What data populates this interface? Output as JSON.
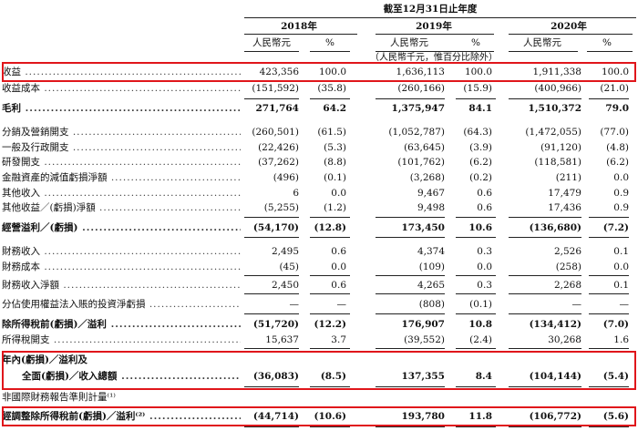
{
  "header": {
    "period_label": "截至12月31日止年度",
    "years": [
      "2018年",
      "2019年",
      "2020年"
    ],
    "col_headers": [
      "人民幣元",
      "%",
      "人民幣元",
      "%",
      "人民幣元",
      "%"
    ],
    "unit_note": "（人民幣千元，惟百分比除外）"
  },
  "rows": [
    {
      "label": "收益",
      "bold": false,
      "values": [
        "423,356",
        "100.0",
        "1,636,113",
        "100.0",
        "1,911,338",
        "100.0"
      ]
    },
    {
      "label": "收益成本",
      "bold": false,
      "values": [
        "(151,592)",
        "(35.8)",
        "(260,166)",
        "(15.9)",
        "(400,966)",
        "(21.0)"
      ]
    },
    {
      "label": "毛利",
      "bold": true,
      "values": [
        "271,764",
        "64.2",
        "1,375,947",
        "84.1",
        "1,510,372",
        "79.0"
      ]
    },
    {
      "label": "分銷及營銷開支",
      "bold": false,
      "values": [
        "(260,501)",
        "(61.5)",
        "(1,052,787)",
        "(64.3)",
        "(1,472,055)",
        "(77.0)"
      ]
    },
    {
      "label": "一般及行政開支",
      "bold": false,
      "values": [
        "(22,426)",
        "(5.3)",
        "(63,645)",
        "(3.9)",
        "(91,120)",
        "(4.8)"
      ]
    },
    {
      "label": "研發開支",
      "bold": false,
      "values": [
        "(37,262)",
        "(8.8)",
        "(101,762)",
        "(6.2)",
        "(118,581)",
        "(6.2)"
      ]
    },
    {
      "label": "金融資產的減值虧損淨額",
      "bold": false,
      "values": [
        "(496)",
        "(0.1)",
        "(3,268)",
        "(0.2)",
        "(211)",
        "0.0"
      ]
    },
    {
      "label": "其他收入",
      "bold": false,
      "values": [
        "6",
        "0.0",
        "9,467",
        "0.6",
        "17,479",
        "0.9"
      ]
    },
    {
      "label": "其他收益／(虧損)淨額",
      "bold": false,
      "values": [
        "(5,255)",
        "(1.2)",
        "9,498",
        "0.6",
        "17,436",
        "0.9"
      ]
    },
    {
      "label": "經營溢利／(虧損)",
      "bold": true,
      "values": [
        "(54,170)",
        "(12.8)",
        "173,450",
        "10.6",
        "(136,680)",
        "(7.2)"
      ]
    },
    {
      "label": "財務收入",
      "bold": false,
      "values": [
        "2,495",
        "0.6",
        "4,374",
        "0.3",
        "2,526",
        "0.1"
      ]
    },
    {
      "label": "財務成本",
      "bold": false,
      "values": [
        "(45)",
        "0.0",
        "(109)",
        "0.0",
        "(258)",
        "0.0"
      ]
    },
    {
      "label": "財務收入淨額",
      "bold": false,
      "values": [
        "2,450",
        "0.6",
        "4,265",
        "0.3",
        "2,268",
        "0.1"
      ]
    },
    {
      "label": "分佔使用權益法入賬的投資淨虧損",
      "bold": false,
      "values": [
        "—",
        "—",
        "(808)",
        "(0.1)",
        "—",
        "—"
      ]
    },
    {
      "label": "除所得稅前(虧損)／溢利",
      "bold": true,
      "values": [
        "(51,720)",
        "(12.2)",
        "176,907",
        "10.8",
        "(134,412)",
        "(7.0)"
      ]
    },
    {
      "label": "所得稅開支",
      "bold": false,
      "values": [
        "15,637",
        "3.7",
        "(39,552)",
        "(2.4)",
        "30,268",
        "1.6"
      ]
    },
    {
      "label": "年內(虧損)／溢利及",
      "bold": true,
      "values": [
        "",
        "",
        "",
        "",
        "",
        ""
      ]
    },
    {
      "label": "全面(虧損)／收入總額",
      "bold": true,
      "values": [
        "(36,083)",
        "(8.5)",
        "137,355",
        "8.4",
        "(104,144)",
        "(5.4)"
      ]
    },
    {
      "label": "非國際財務報告準則計量⁽¹⁾",
      "bold": false,
      "values": [
        "",
        "",
        "",
        "",
        "",
        ""
      ]
    },
    {
      "label": "經調整除所得稅前(虧損)／溢利⁽²⁾",
      "bold": true,
      "values": [
        "(44,714)",
        "(10.6)",
        "193,780",
        "11.8",
        "(106,772)",
        "(5.6)"
      ]
    }
  ],
  "highlight_color": "#e0161b"
}
